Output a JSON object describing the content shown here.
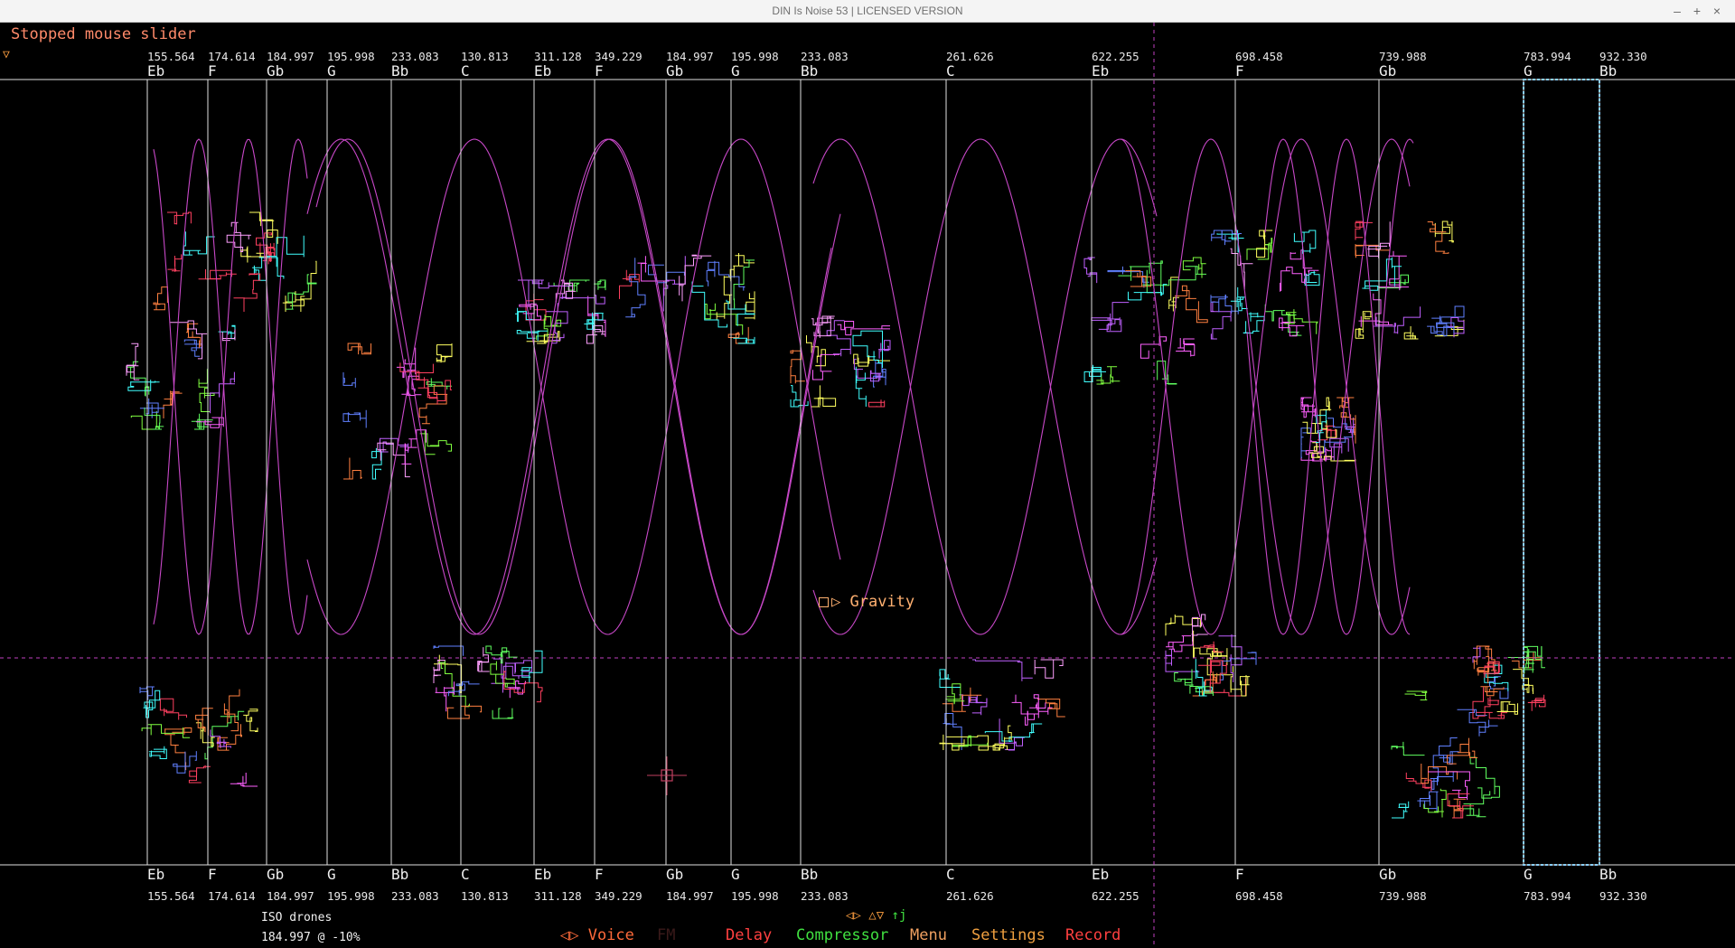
{
  "window": {
    "title": "DIN Is Noise 53 | LICENSED VERSION",
    "buttons": {
      "minimize": "–",
      "maximize": "+",
      "close": "×"
    }
  },
  "status": {
    "message": "Stopped mouse slider",
    "toggle": "▽"
  },
  "scale": {
    "notes": [
      {
        "note": "Eb",
        "freq": "155.564"
      },
      {
        "note": "F",
        "freq": "174.614"
      },
      {
        "note": "Gb",
        "freq": "184.997"
      },
      {
        "note": "G",
        "freq": "195.998"
      },
      {
        "note": "Bb",
        "freq": "233.083"
      },
      {
        "note": "C",
        "freq": "130.813"
      },
      {
        "note": "Eb",
        "freq": "311.128"
      },
      {
        "note": "F",
        "freq": "349.229"
      },
      {
        "note": "Gb",
        "freq": "184.997"
      },
      {
        "note": "G",
        "freq": "195.998"
      },
      {
        "note": "Bb",
        "freq": "233.083"
      },
      {
        "note": "C",
        "freq": "261.626"
      },
      {
        "note": "Eb",
        "freq": "622.255"
      },
      {
        "note": "F",
        "freq": "698.458"
      },
      {
        "note": "Gb",
        "freq": "739.988"
      },
      {
        "note": "G",
        "freq": "783.994"
      },
      {
        "note": "Bb",
        "freq": "932.330"
      }
    ]
  },
  "gravity": {
    "label": "Gravity",
    "icon": "gravity-play-icon"
  },
  "drone_info": {
    "title": "ISO drones",
    "readout": "184.997 @ -10%"
  },
  "nav": {
    "arrows": "◁▷ △▽",
    "updown": "↑j"
  },
  "menu": {
    "voice": "◁▷ Voice",
    "fm": "FM",
    "delay": "Delay",
    "compressor": "Compressor",
    "menu": "Menu",
    "settings": "Settings",
    "record": "Record"
  },
  "colors": {
    "line": "#e0e0e0",
    "curve": "#c848c8",
    "crosshair": "#c040c0",
    "selection": "#8ad0ff",
    "voice": "#ff6a3a",
    "fm": "#3a1a1a",
    "delay": "#ff4040",
    "compressor": "#40e040",
    "menu": "#f0a060",
    "settings": "#f0a040",
    "record": "#ff4040"
  }
}
